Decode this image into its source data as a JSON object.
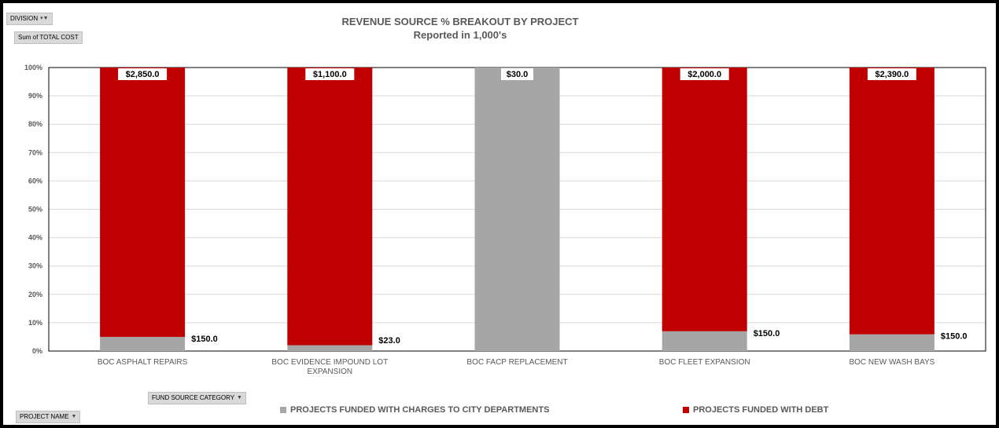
{
  "pivot": {
    "division_label": "DIVISION",
    "sum_label": "Sum of TOTAL COST",
    "fund_source_label": "FUND SOURCE CATEGORY",
    "project_name_label": "PROJECT NAME"
  },
  "colors": {
    "charges": "#a6a6a6",
    "debt": "#c00000"
  },
  "chart_data": {
    "type": "bar",
    "stacked": "percent",
    "title": "REVENUE SOURCE % BREAKOUT BY PROJECT",
    "subtitle": "Reported in 1,000's",
    "categories": [
      "BOC ASPHALT REPAIRS",
      "BOC EVIDENCE IMPOUND LOT EXPANSION",
      "BOC FACP REPLACEMENT",
      "BOC FLEET EXPANSION",
      "BOC NEW WASH BAYS"
    ],
    "series": [
      {
        "name": "PROJECTS FUNDED WITH CHARGES TO CITY DEPARTMENTS",
        "values": [
          150.0,
          23.0,
          30.0,
          150.0,
          150.0
        ],
        "labels": [
          "$150.0",
          "$23.0",
          "$30.0",
          "$150.0",
          "$150.0"
        ]
      },
      {
        "name": "PROJECTS FUNDED WITH DEBT",
        "values": [
          2850.0,
          1100.0,
          0,
          2000.0,
          2390.0
        ],
        "labels": [
          "$2,850.0",
          "$1,100.0",
          "",
          "$2,000.0",
          "$2,390.0"
        ]
      }
    ],
    "yticks": [
      "0%",
      "10%",
      "20%",
      "30%",
      "40%",
      "50%",
      "60%",
      "70%",
      "80%",
      "90%",
      "100%"
    ],
    "ylim": [
      0,
      100
    ],
    "grid": true,
    "legend_position": "bottom"
  }
}
